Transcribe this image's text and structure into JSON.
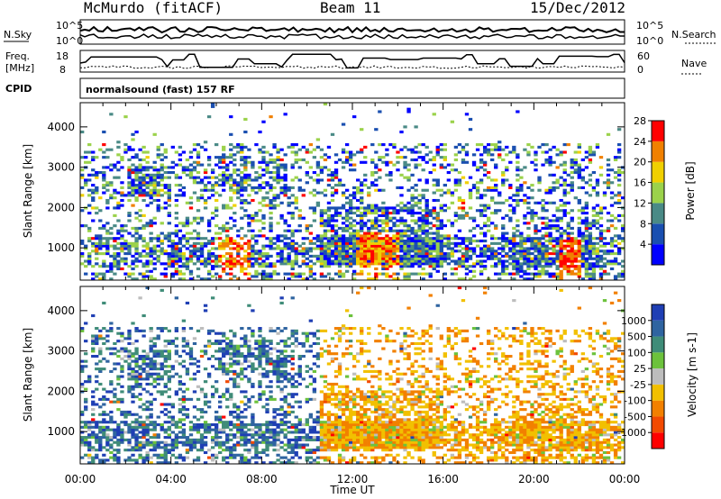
{
  "header": {
    "station": "McMurdo (fitACF)",
    "beam": "Beam 11",
    "date": "15/Dec/2012",
    "left_label_top": "N.Sky",
    "right_label_top": "N.Search",
    "top_ticks_left": [
      "10^5",
      "10^0"
    ],
    "top_ticks_right": [
      "10^5",
      "10^0"
    ],
    "freq_label_line1": "Freq.",
    "freq_label_line2": "[MHz]",
    "freq_ticks": [
      "18",
      "8"
    ],
    "nave_label": "Nave",
    "nave_ticks": [
      "60",
      "0"
    ],
    "cpid_label": "CPID",
    "cpid_text": "normalsound (fast) 157 RF"
  },
  "chart_data": [
    {
      "type": "heatmap",
      "title": "",
      "xlabel": "Time UT",
      "ylabel": "Slant Range [km]",
      "xlim": [
        0,
        24
      ],
      "ylim": [
        200,
        4600
      ],
      "x_ticks": [
        "00:00",
        "04:00",
        "08:00",
        "12:00",
        "16:00",
        "20:00",
        "00:00"
      ],
      "y_ticks": [
        "1000",
        "2000",
        "3000",
        "4000"
      ],
      "colorbar": {
        "label": "Power [dB]",
        "ticks": [
          "4",
          "8",
          "12",
          "16",
          "20",
          "24",
          "28"
        ],
        "colors": [
          "#0000ff",
          "#1a4fb0",
          "#4a8a86",
          "#9bd24b",
          "#f0d000",
          "#f08000",
          "#ff0000"
        ]
      }
    },
    {
      "type": "heatmap",
      "title": "",
      "xlabel": "Time UT",
      "ylabel": "Slant Range [km]",
      "xlim": [
        0,
        24
      ],
      "ylim": [
        200,
        4600
      ],
      "x_ticks": [
        "00:00",
        "04:00",
        "08:00",
        "12:00",
        "16:00",
        "20:00",
        "00:00"
      ],
      "y_ticks": [
        "1000",
        "2000",
        "3000",
        "4000"
      ],
      "colorbar": {
        "label": "Velocity [m s-1]",
        "ticks": [
          "1000",
          "500",
          "100",
          "25",
          "-25",
          "-100",
          "-500",
          "-1000"
        ],
        "colors": [
          "#1f3fb4",
          "#2f64a0",
          "#3f8c78",
          "#6cc23c",
          "#bdbdbd",
          "#f2c000",
          "#f28000",
          "#f24a00",
          "#ff0000"
        ]
      }
    }
  ],
  "x_axis_label": "Time UT"
}
